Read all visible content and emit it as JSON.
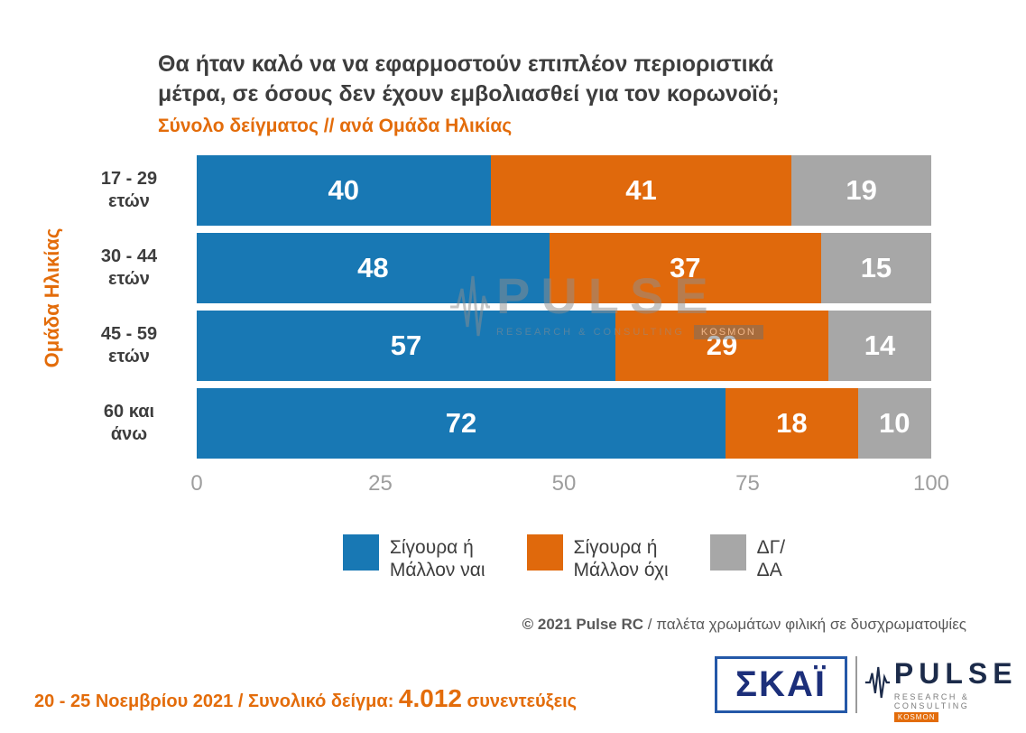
{
  "title": {
    "line1": "Θα ήταν καλό να να εφαρμοστούν επιπλέον περιοριστικά",
    "line2": "μέτρα, σε όσους δεν έχουν εμβολιασθεί για τον κορωνοϊό;",
    "subtitle": "Σύνολο δείγματος // ανά Ομάδα Ηλικίας"
  },
  "chart_data": {
    "type": "bar",
    "orientation": "horizontal",
    "stacked": true,
    "ylabel": "Ομάδα Ηλικίας",
    "categories": [
      "17 - 29\nετών",
      "30 - 44\nετών",
      "45 - 59\nετών",
      "60 και\nάνω"
    ],
    "series": [
      {
        "name": "Σίγουρα ή Μάλλον ναι",
        "label": "Σίγουρα ή\nΜάλλον ναι",
        "color": "#1878b4",
        "values": [
          40,
          48,
          57,
          72
        ]
      },
      {
        "name": "Σίγουρα ή Μάλλον όχι",
        "label": "Σίγουρα ή\nΜάλλον όχι",
        "color": "#e0690c",
        "values": [
          41,
          37,
          29,
          18
        ]
      },
      {
        "name": "ΔΓ/ ΔΑ",
        "label": "ΔΓ/\nΔΑ",
        "color": "#a7a7a7",
        "values": [
          19,
          15,
          14,
          10
        ]
      }
    ],
    "xticks": [
      0,
      25,
      50,
      75,
      100
    ],
    "xlim": [
      0,
      100
    ],
    "grid": false,
    "legend_position": "bottom"
  },
  "copyright": {
    "strong": "© 2021 Pulse RC",
    "rest": "  /   παλέτα χρωμάτων φιλική σε δυσχρωματοψίες"
  },
  "footer": {
    "date_range": "20 - 25  Νοεμβρίου 2021",
    "separator": "  /  ",
    "sample_label": "Συνολικό δείγμα: ",
    "sample_value": "4.012",
    "sample_unit": " συνεντεύξεις"
  },
  "logos": {
    "skai": "ΣΚΑΪ",
    "pulse": "PULSE",
    "pulse_sub": "RESEARCH & CONSULTING",
    "kosmon": "KOSMON"
  },
  "watermark": {
    "word": "PULSE",
    "sub": "RESEARCH & CONSULTING",
    "kosmon": "KOSMON"
  }
}
